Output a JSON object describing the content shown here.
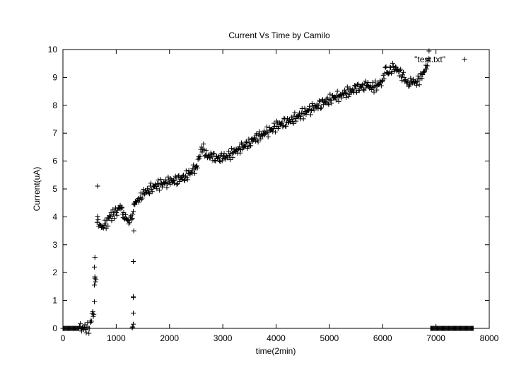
{
  "chart_data": {
    "type": "scatter",
    "title": "Current Vs Time by Camilo",
    "xlabel": "time(2min)",
    "ylabel": "Current(uA)",
    "xlim": [
      0,
      8000
    ],
    "ylim": [
      0,
      10
    ],
    "x_ticks": [
      0,
      1000,
      2000,
      3000,
      4000,
      5000,
      6000,
      7000,
      8000
    ],
    "y_ticks": [
      0,
      1,
      2,
      3,
      4,
      5,
      6,
      7,
      8,
      9,
      10
    ],
    "x_tick_labels": [
      "0",
      "1000",
      "2000",
      "3000",
      "4000",
      "5000",
      "6000",
      "7000",
      "8000"
    ],
    "y_tick_labels": [
      "0",
      "1",
      "2",
      "3",
      "4",
      "5",
      "6",
      "7",
      "8",
      "9",
      "10"
    ],
    "grid": false,
    "legend_position": "top-right",
    "marker": "+",
    "series": [
      {
        "name": "\"test.txt\"",
        "color": "#000000",
        "x": [
          0,
          100,
          200,
          300,
          400,
          500,
          560,
          580,
          600,
          620,
          640,
          660,
          700,
          760,
          800,
          880,
          950,
          1000,
          1050,
          1100,
          1120,
          1150,
          1200,
          1250,
          1290,
          1310,
          1330,
          1360,
          1400,
          1450,
          1500,
          1600,
          1700,
          1800,
          1900,
          2000,
          2100,
          2200,
          2300,
          2400,
          2500,
          2560,
          2600,
          2650,
          2700,
          2800,
          2900,
          3000,
          3100,
          3200,
          3300,
          3400,
          3500,
          3600,
          3700,
          3800,
          3900,
          4000,
          4100,
          4200,
          4300,
          4400,
          4500,
          4600,
          4700,
          4800,
          4900,
          5000,
          5100,
          5200,
          5300,
          5400,
          5500,
          5600,
          5700,
          5800,
          5900,
          6000,
          6050,
          6100,
          6200,
          6300,
          6400,
          6450,
          6500,
          6550,
          6600,
          6650,
          6700,
          6750,
          6800,
          6850,
          6870,
          6900,
          7000,
          7100,
          7200,
          7300,
          7400,
          7500,
          7600,
          7700
        ],
        "y": [
          0,
          0,
          0,
          0,
          0.02,
          0,
          0.6,
          0.5,
          1.8,
          1.75,
          3.8,
          3.9,
          3.7,
          3.6,
          3.75,
          3.95,
          4.1,
          4.15,
          4.3,
          4.35,
          4.1,
          3.95,
          3.9,
          3.8,
          3.9,
          4.1,
          4.45,
          4.55,
          4.6,
          4.7,
          4.85,
          4.95,
          5.1,
          5.15,
          5.2,
          5.25,
          5.3,
          5.35,
          5.45,
          5.6,
          5.8,
          6.1,
          6.5,
          6.4,
          6.2,
          6.15,
          6.1,
          6.1,
          6.2,
          6.3,
          6.45,
          6.55,
          6.65,
          6.8,
          6.9,
          7.0,
          7.1,
          7.25,
          7.35,
          7.4,
          7.5,
          7.6,
          7.7,
          7.8,
          7.9,
          8.0,
          8.1,
          8.2,
          8.3,
          8.35,
          8.45,
          8.5,
          8.6,
          8.65,
          8.7,
          8.65,
          8.7,
          8.9,
          9.35,
          9.15,
          9.4,
          9.2,
          9.0,
          8.8,
          8.7,
          8.85,
          8.8,
          8.85,
          8.95,
          9.1,
          9.3,
          9.6,
          9.95,
          0,
          0,
          0,
          0,
          0,
          0,
          0,
          0,
          0
        ]
      }
    ],
    "outliers": {
      "x": [
        650,
        600,
        590,
        590,
        600,
        1320,
        1320,
        1320,
        1320,
        1320,
        1310,
        1300,
        1330
      ],
      "y": [
        5.1,
        2.55,
        2.2,
        1.55,
        1.85,
        2.4,
        1.15,
        1.1,
        0.55,
        0.15,
        0.05,
        0.02,
        3.5
      ]
    }
  }
}
